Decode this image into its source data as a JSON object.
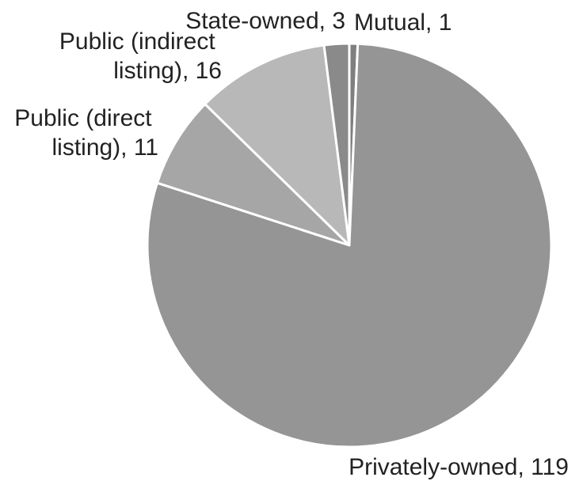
{
  "chart_data": {
    "type": "pie",
    "title": "",
    "slices": [
      {
        "label": "Mutual",
        "value": 1,
        "color": "#7f7f7f",
        "label_lines": [
          "Mutual, 1"
        ]
      },
      {
        "label": "Privately-owned",
        "value": 119,
        "color": "#959595",
        "label_lines": [
          "Privately-owned, 119"
        ]
      },
      {
        "label": "Public (direct listing)",
        "value": 11,
        "color": "#a6a6a6",
        "label_lines": [
          "Public (direct",
          "listing), 11"
        ]
      },
      {
        "label": "Public (indirect listing)",
        "value": 16,
        "color": "#b8b8b8",
        "label_lines": [
          "Public (indirect",
          "listing), 16"
        ]
      },
      {
        "label": "State-owned",
        "value": 3,
        "color": "#8a8a8a",
        "label_lines": [
          "State-owned, 3"
        ]
      }
    ],
    "start_angle_deg": 0,
    "direction": "clockwise",
    "legend": "none",
    "data_labels": "outside"
  }
}
